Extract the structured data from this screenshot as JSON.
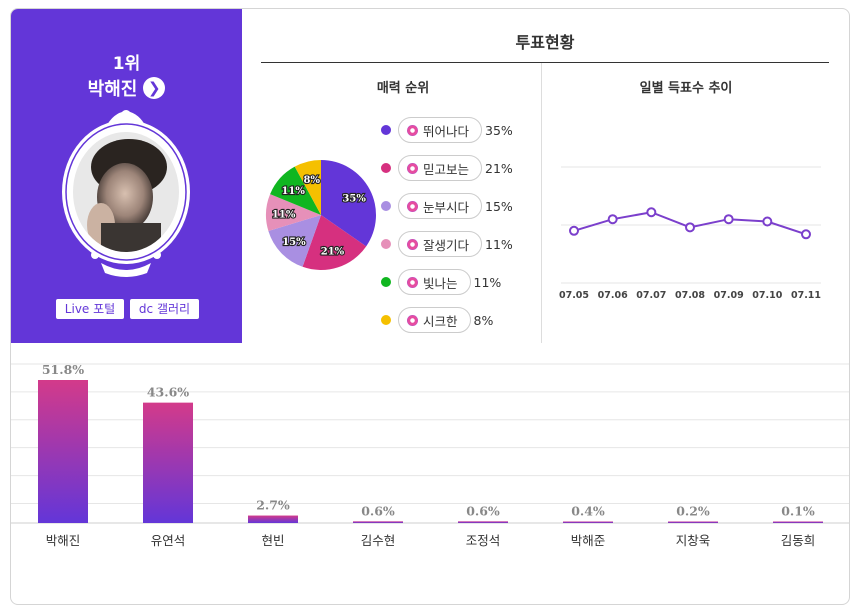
{
  "top_rank": {
    "rank_label": "1위",
    "name": "박해진",
    "arrow_icon": "chevron-right-icon",
    "links": [
      "Live 포털",
      "dc 갤러리"
    ]
  },
  "vote_status": {
    "title": "투표현황"
  },
  "chart_data": [
    {
      "type": "pie",
      "title": "매력 순위",
      "labels": [
        "뛰어나다",
        "믿고보는",
        "눈부시다",
        "잘생기다",
        "빛나는",
        "시크한"
      ],
      "values": [
        35,
        21,
        15,
        11,
        11,
        8
      ],
      "value_labels": [
        "35%",
        "21%",
        "15%",
        "11%",
        "11%",
        "8%"
      ],
      "colors": [
        "#6336d8",
        "#d6307f",
        "#a98fe2",
        "#e690b9",
        "#10b620",
        "#f5c000"
      ]
    },
    {
      "type": "line",
      "title": "일별 득표수 추이",
      "x": [
        "07.05",
        "07.06",
        "07.07",
        "07.08",
        "07.09",
        "07.10",
        "07.11"
      ],
      "values": [
        45,
        55,
        61,
        48,
        55,
        53,
        42
      ],
      "ylim": [
        0,
        100
      ],
      "color": "#7b3fcc"
    },
    {
      "type": "bar",
      "categories": [
        "박해진",
        "유연석",
        "현빈",
        "김수현",
        "조정석",
        "박해준",
        "지창욱",
        "김동희"
      ],
      "values": [
        51.8,
        43.6,
        2.7,
        0.6,
        0.6,
        0.4,
        0.2,
        0.1
      ],
      "value_labels": [
        "51.8%",
        "43.6%",
        "2.7%",
        "0.6%",
        "0.6%",
        "0.4%",
        "0.2%",
        "0.1%"
      ],
      "ylim": [
        0,
        60
      ],
      "grid": true,
      "colors": [
        "#d33a8a",
        "#6336d8"
      ]
    }
  ]
}
